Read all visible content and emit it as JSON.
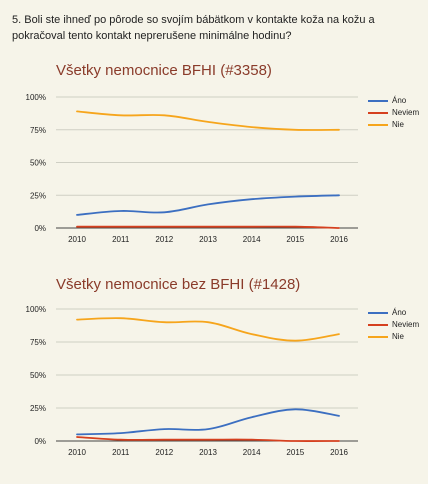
{
  "question": "5. Boli ste ihneď po pôrode so svojím bábätkom v kontakte koža na kožu a pokračoval tento kontakt neprerušene minimálne hodinu?",
  "colors": {
    "Áno": "#3c6fc1",
    "Neviem": "#d5401f",
    "Nie": "#f6a51c",
    "grid": "#cfcfc4",
    "title": "#8a3b2a"
  },
  "chart_data": [
    {
      "type": "line",
      "title": "Všetky nemocnice BFHI (#3358)",
      "x": [
        "2010",
        "2011",
        "2012",
        "2013",
        "2014",
        "2015",
        "2016"
      ],
      "ylim": [
        0,
        100
      ],
      "yticks": [
        "0%",
        "25%",
        "50%",
        "75%",
        "100%"
      ],
      "grid": true,
      "legend": "right",
      "series": [
        {
          "name": "Áno",
          "values": [
            10,
            13,
            12,
            18,
            22,
            24,
            25
          ]
        },
        {
          "name": "Neviem",
          "values": [
            1,
            1,
            1,
            1,
            1,
            1,
            0
          ]
        },
        {
          "name": "Nie",
          "values": [
            89,
            86,
            86,
            81,
            77,
            75,
            75
          ]
        }
      ]
    },
    {
      "type": "line",
      "title": "Všetky nemocnice bez BFHI (#1428)",
      "x": [
        "2010",
        "2011",
        "2012",
        "2013",
        "2014",
        "2015",
        "2016"
      ],
      "ylim": [
        0,
        100
      ],
      "yticks": [
        "0%",
        "25%",
        "50%",
        "75%",
        "100%"
      ],
      "grid": true,
      "legend": "right",
      "series": [
        {
          "name": "Áno",
          "values": [
            5,
            6,
            9,
            9,
            18,
            24,
            19
          ]
        },
        {
          "name": "Neviem",
          "values": [
            3,
            1,
            1,
            1,
            1,
            0,
            0
          ]
        },
        {
          "name": "Nie",
          "values": [
            92,
            93,
            90,
            90,
            81,
            76,
            81
          ]
        }
      ]
    }
  ]
}
